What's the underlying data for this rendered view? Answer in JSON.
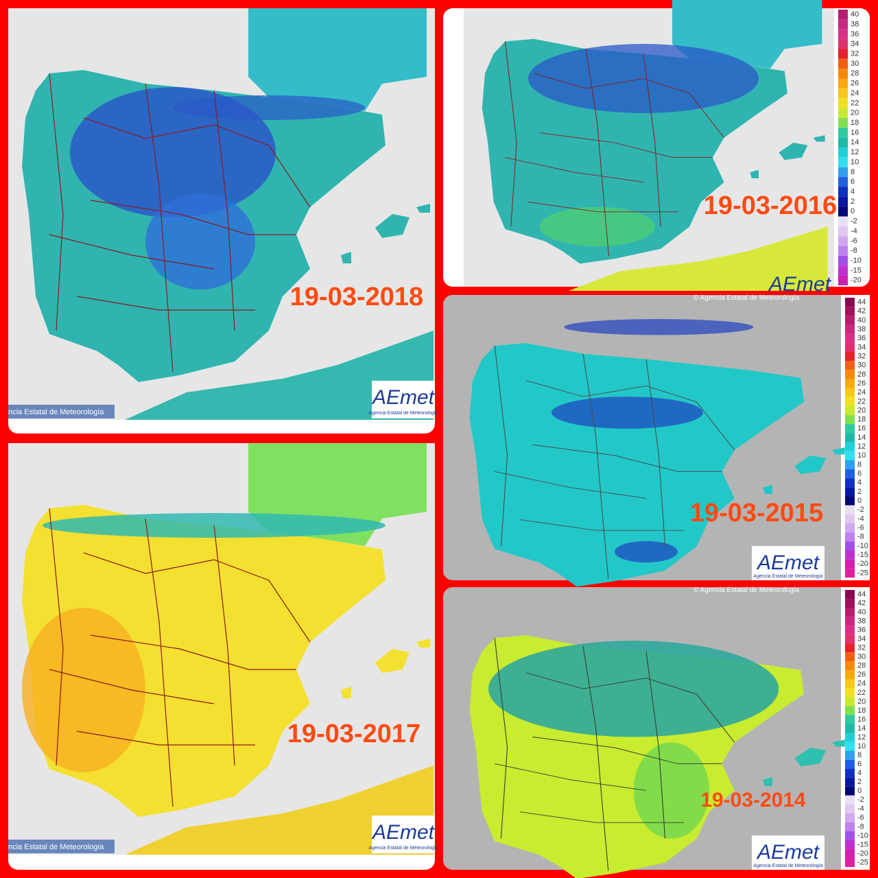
{
  "panels": [
    {
      "date": "19-03-2018",
      "credit": "ncia Estatal de Meteorología",
      "logo": "AEmet",
      "logo_sub": "Agencia Estatal de Meteorología"
    },
    {
      "date": "19-03-2016",
      "logo": "AEmet",
      "legend": {
        "labels": [
          40,
          38,
          36,
          34,
          32,
          30,
          28,
          26,
          24,
          22,
          20,
          18,
          16,
          14,
          12,
          10,
          8,
          6,
          4,
          2,
          0,
          -2,
          -4,
          -6,
          -8,
          -10,
          -15,
          -20
        ],
        "colors": [
          "#b51d6e",
          "#c8287f",
          "#d8308a",
          "#e0306a",
          "#e8202a",
          "#f06010",
          "#f58a0a",
          "#f8a810",
          "#f8c818",
          "#f0e020",
          "#c8e830",
          "#80e050",
          "#30c8a0",
          "#20b8a8",
          "#20d0d8",
          "#30e0f0",
          "#30a0f0",
          "#2060e0",
          "#1030c0",
          "#0818a0",
          "#000878",
          "#e8e0f0",
          "#e0c8f0",
          "#d0a8f0",
          "#c080f0",
          "#a050e8",
          "#c030d0",
          "#d020b0"
        ]
      }
    },
    {
      "date": "19-03-2015",
      "copyright": "© Agencia Estatal de Meteorología",
      "logo": "AEmet",
      "logo_sub": "Agencia Estatal de Meteorología",
      "legend": {
        "labels": [
          44,
          42,
          40,
          38,
          36,
          34,
          32,
          30,
          28,
          26,
          24,
          22,
          20,
          18,
          16,
          14,
          12,
          10,
          8,
          6,
          4,
          2,
          0,
          -2,
          -4,
          -6,
          -8,
          -10,
          -15,
          -20,
          -25
        ],
        "colors": [
          "#8b0a50",
          "#a0125e",
          "#b51d6e",
          "#c8287f",
          "#d8308a",
          "#e0306a",
          "#e8202a",
          "#f06010",
          "#f58a0a",
          "#f8a810",
          "#f8c818",
          "#f0e020",
          "#c8e830",
          "#80e050",
          "#30c8a0",
          "#20b8a8",
          "#20d0d8",
          "#30e0f0",
          "#30a0f0",
          "#2060e0",
          "#1030c0",
          "#0818a0",
          "#000878",
          "#e8e0f0",
          "#e0c8f0",
          "#d0a8f0",
          "#c080f0",
          "#a050e8",
          "#c030d0",
          "#d020b0",
          "#e020a0"
        ]
      }
    },
    {
      "date": "19-03-2017",
      "credit": "ncia Estatal de Meteorología",
      "logo": "AEmet",
      "logo_sub": "Agencia Estatal de Meteorología"
    },
    {
      "date": "19-03-2014",
      "copyright": "© Agencia Estatal de Meteorología",
      "logo": "AEmet",
      "logo_sub": "Agencia Estatal de Meteorología",
      "legend": {
        "labels": [
          44,
          42,
          40,
          38,
          36,
          34,
          32,
          30,
          28,
          26,
          24,
          22,
          20,
          18,
          16,
          14,
          12,
          10,
          8,
          6,
          4,
          2,
          0,
          -2,
          -4,
          -6,
          -8,
          -10,
          -15,
          -20,
          -25
        ],
        "colors": [
          "#8b0a50",
          "#a0125e",
          "#b51d6e",
          "#c8287f",
          "#d8308a",
          "#e0306a",
          "#e8202a",
          "#f06010",
          "#f58a0a",
          "#f8a810",
          "#f8c818",
          "#f0e020",
          "#c8e830",
          "#80e050",
          "#30c8a0",
          "#20b8a8",
          "#20d0d8",
          "#30e0f0",
          "#30a0f0",
          "#2060e0",
          "#1030c0",
          "#0818a0",
          "#000878",
          "#e8e0f0",
          "#e0c8f0",
          "#d0a8f0",
          "#c080f0",
          "#a050e8",
          "#c030d0",
          "#d020b0",
          "#e020a0"
        ]
      }
    }
  ]
}
